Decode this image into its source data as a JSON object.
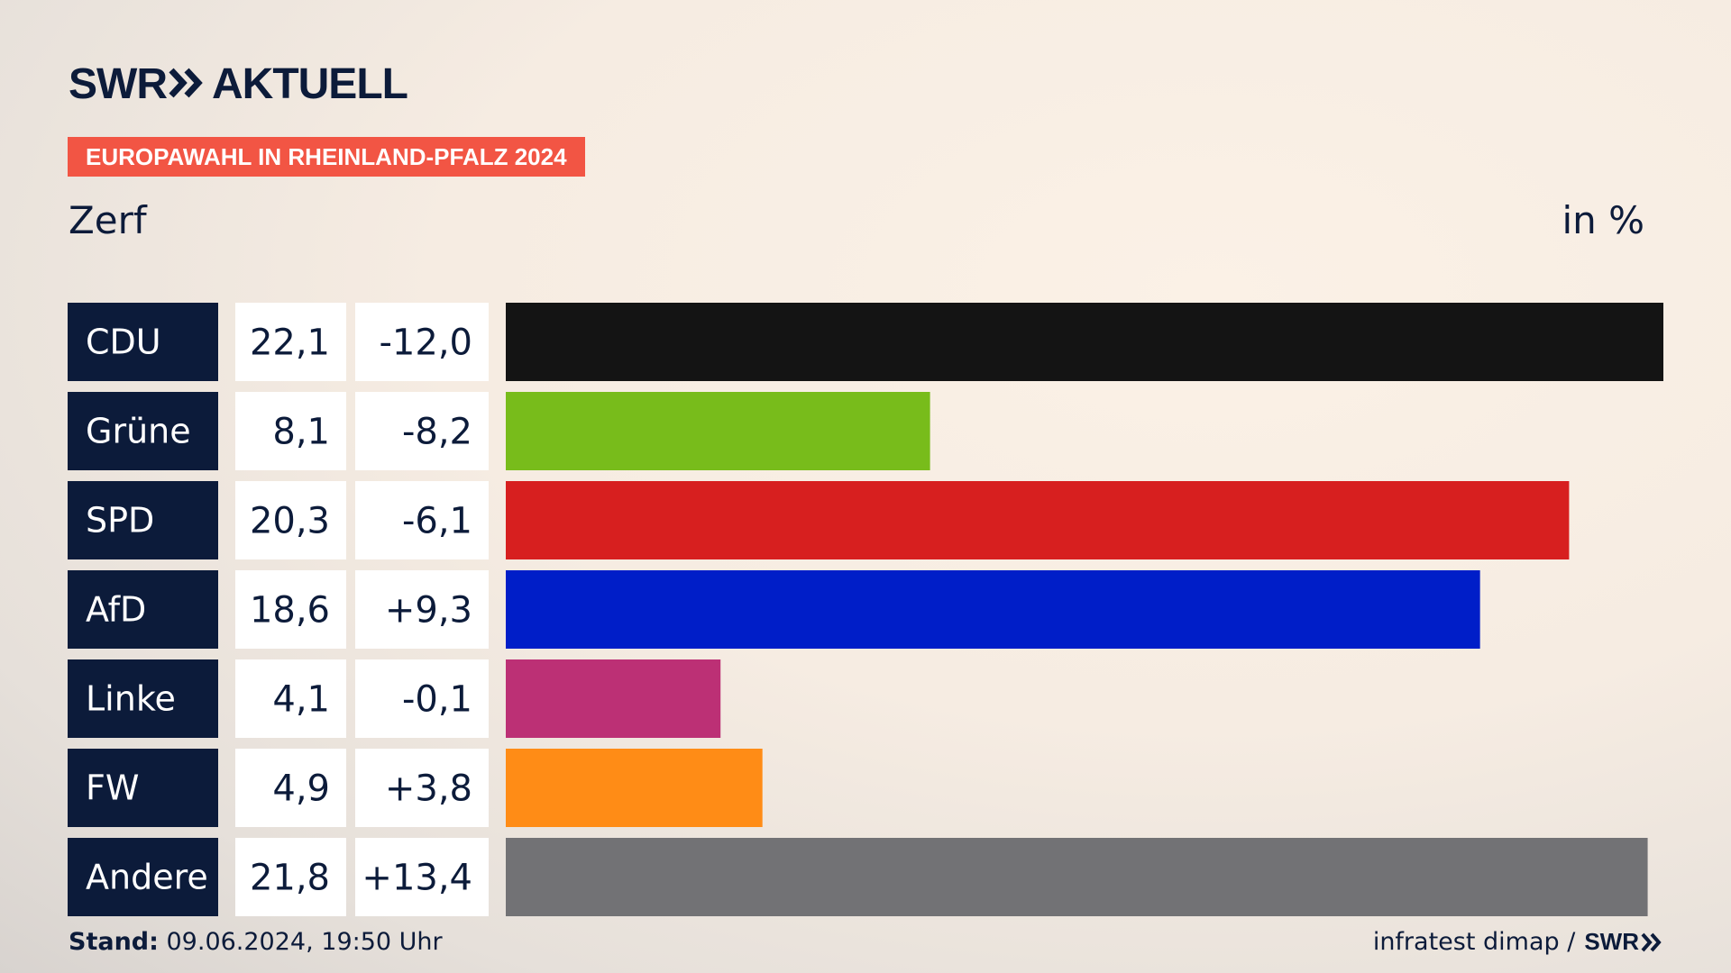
{
  "brand": {
    "logo_left": "SWR",
    "logo_right": "AKTUELL"
  },
  "header": {
    "tag": "EUROPAWAHL IN RHEINLAND-PFALZ 2024",
    "place": "Zerf",
    "unit": "in %"
  },
  "colors": {
    "navy": "#0c1b3a",
    "tag": "#f25544",
    "CDU": "#141414",
    "Grüne": "#78bc1b",
    "SPD": "#d71f1f",
    "AfD": "#001ec8",
    "Linke": "#bc3075",
    "FW": "#ff8c16",
    "Andere": "#727275"
  },
  "chart_data": {
    "type": "bar",
    "orientation": "horizontal",
    "title": "Zerf",
    "unit": "in %",
    "categories": [
      "CDU",
      "Grüne",
      "SPD",
      "AfD",
      "Linke",
      "FW",
      "Andere"
    ],
    "values": [
      "22,1",
      "8,1",
      "20,3",
      "18,6",
      "4,1",
      "4,9",
      "21,8"
    ],
    "changes": [
      "-12,0",
      "-8,2",
      "-6,1",
      "+9,3",
      "-0,1",
      "+3,8",
      "+13,4"
    ],
    "numeric_values": [
      22.1,
      8.1,
      20.3,
      18.6,
      4.1,
      4.9,
      21.8
    ],
    "xlim": [
      0,
      22.1
    ]
  },
  "footer": {
    "stand_label": "Stand:",
    "stand_value": " 09.06.2024, 19:50 Uhr",
    "source": "infratest dimap /",
    "source_logo": "SWR"
  }
}
